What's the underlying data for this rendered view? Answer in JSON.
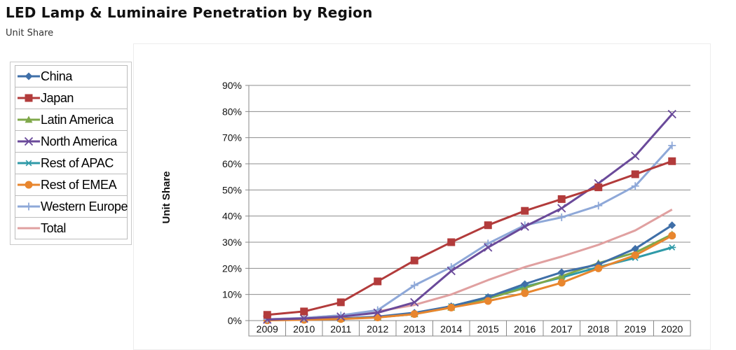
{
  "title": "LED Lamp & Luminaire Penetration by Region",
  "subtitle": "Unit Share",
  "chart_data": {
    "type": "line",
    "ylabel": "Unit Share",
    "xlabel": "",
    "x": [
      "2009",
      "2010",
      "2011",
      "2012",
      "2013",
      "2014",
      "2015",
      "2016",
      "2017",
      "2018",
      "2019",
      "2020"
    ],
    "ylim": [
      0,
      90
    ],
    "yticks": [
      "0%",
      "10%",
      "20%",
      "30%",
      "40%",
      "50%",
      "60%",
      "70%",
      "80%",
      "90%"
    ],
    "grid": "horizontal",
    "legend_position": "left",
    "series": [
      {
        "name": "China",
        "color": "#3f6fa8",
        "marker": "diamond",
        "values": [
          0.3,
          0.5,
          0.8,
          1.5,
          3,
          5.5,
          9,
          14,
          18.5,
          21.5,
          27.5,
          36.5
        ]
      },
      {
        "name": "Japan",
        "color": "#b23b3b",
        "marker": "square",
        "values": [
          2.2,
          3.5,
          7,
          15,
          23,
          30,
          36.5,
          42,
          46.5,
          51,
          56,
          61
        ]
      },
      {
        "name": "Latin America",
        "color": "#7fa84a",
        "marker": "triangle",
        "values": [
          0.2,
          0.4,
          0.7,
          1.3,
          2.5,
          5,
          8.5,
          12.5,
          17,
          22,
          26,
          33
        ]
      },
      {
        "name": "North America",
        "color": "#6a4a9a",
        "marker": "x",
        "values": [
          0.4,
          0.8,
          1.5,
          3,
          7,
          19,
          28,
          36,
          43,
          52.5,
          63,
          79
        ]
      },
      {
        "name": "Rest of APAC",
        "color": "#2f9aa8",
        "marker": "asterisk",
        "values": [
          0.2,
          0.4,
          0.7,
          1.3,
          2.5,
          5.5,
          9,
          13,
          16.5,
          20.5,
          24,
          28
        ]
      },
      {
        "name": "Rest of EMEA",
        "color": "#e8862e",
        "marker": "circle",
        "values": [
          0.1,
          0.3,
          0.6,
          1.2,
          2.5,
          5,
          7.5,
          10.5,
          14.5,
          20,
          25,
          32.5
        ]
      },
      {
        "name": "Western Europe",
        "color": "#8ea8d8",
        "marker": "plus",
        "values": [
          0.5,
          1,
          2,
          4,
          13.5,
          20.5,
          29.5,
          36.5,
          39.5,
          44,
          51.5,
          67
        ]
      },
      {
        "name": "Total",
        "color": "#e0a0a0",
        "marker": "none",
        "values": [
          0.5,
          1,
          2,
          3.5,
          6,
          10,
          15.5,
          20.5,
          24.5,
          29,
          34.5,
          42.5
        ]
      }
    ]
  }
}
